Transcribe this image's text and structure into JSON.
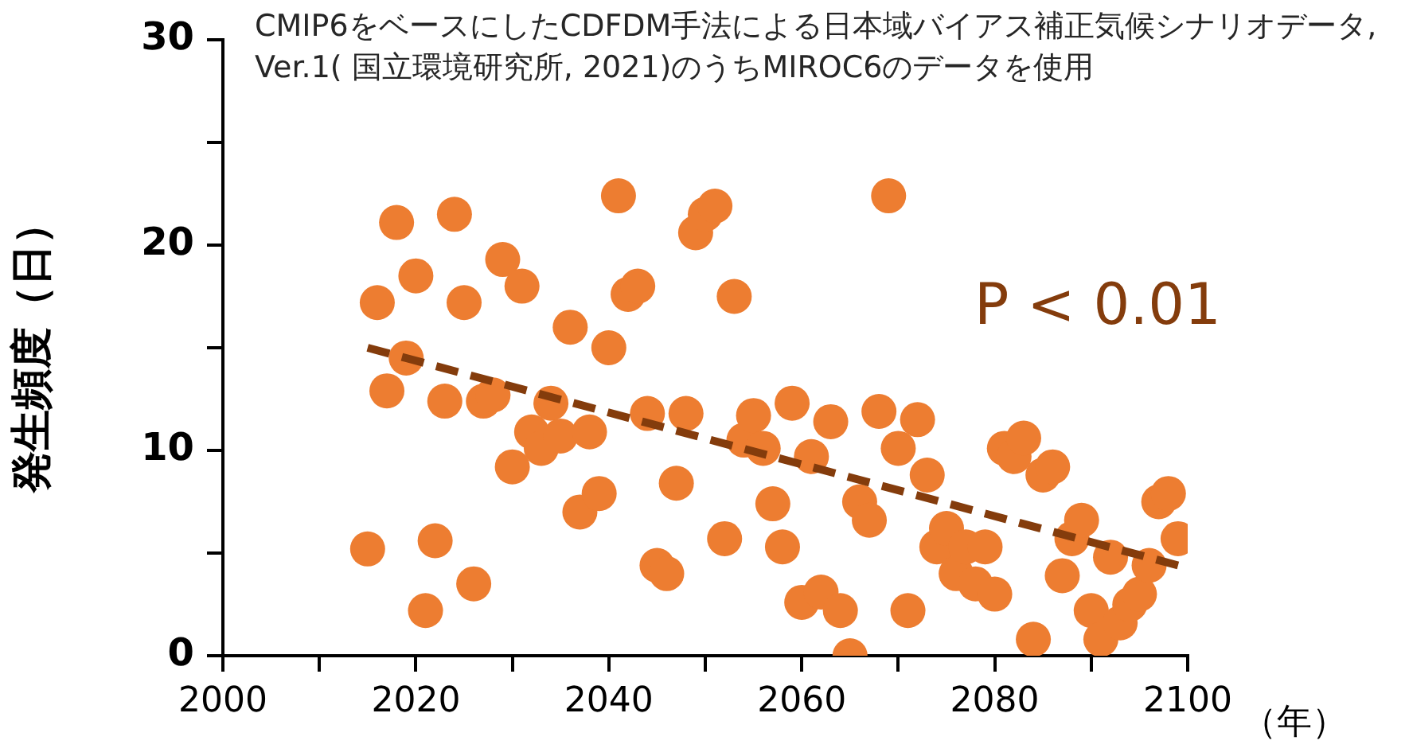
{
  "chart_data": {
    "type": "scatter",
    "xlabel": "（年）",
    "ylabel": "発生頻度（日）",
    "annotations": [
      "CMIP6をベースにしたCDFDM手法による日本域バイアス補正気候シナリオデータ, Ver.1( 国立環境研究所, 2021)のうちMIROC6のデータを使用",
      "P < 0.01"
    ],
    "xlim": [
      2000,
      2100
    ],
    "xticks": [
      2000,
      {
        "value": 2010,
        "label": null
      },
      2020,
      {
        "value": 2030,
        "label": null
      },
      2040,
      {
        "value": 2050,
        "label": null
      },
      2060,
      {
        "value": 2070,
        "label": null
      },
      2080,
      {
        "value": 2090,
        "label": null
      },
      2100
    ],
    "ylim": [
      0,
      30
    ],
    "yticks": [
      0,
      {
        "value": 5,
        "label": null
      },
      10,
      {
        "value": 15,
        "label": null
      },
      20,
      {
        "value": 25,
        "label": null
      },
      30
    ],
    "series": [
      {
        "color": "#ed7d31",
        "marker": "circle",
        "x": [
          2015,
          2016,
          2017,
          2018,
          2019,
          2020,
          2021,
          2022,
          2023,
          2024,
          2025,
          2026,
          2027,
          2028,
          2029,
          2030,
          2031,
          2032,
          2033,
          2034,
          2035,
          2036,
          2037,
          2038,
          2039,
          2040,
          2041,
          2042,
          2043,
          2044,
          2045,
          2046,
          2047,
          2048,
          2049,
          2050,
          2051,
          2052,
          2053,
          2054,
          2055,
          2056,
          2057,
          2058,
          2059,
          2060,
          2061,
          2062,
          2063,
          2064,
          2065,
          2066,
          2067,
          2068,
          2069,
          2070,
          2071,
          2072,
          2073,
          2074,
          2075,
          2076,
          2077,
          2078,
          2079,
          2080,
          2081,
          2082,
          2083,
          2084,
          2085,
          2086,
          2087,
          2088,
          2089,
          2090,
          2091,
          2092,
          2093,
          2094,
          2095,
          2096,
          2097,
          2098,
          2099
        ],
        "values": [
          5.2,
          17.2,
          12.9,
          21.1,
          14.5,
          18.5,
          2.2,
          5.6,
          12.4,
          21.5,
          17.2,
          3.5,
          12.4,
          12.7,
          19.3,
          9.2,
          18.0,
          10.9,
          10.1,
          12.3,
          10.7,
          16.0,
          7.0,
          10.9,
          7.9,
          15.0,
          22.4,
          17.6,
          18.0,
          11.8,
          4.4,
          4.0,
          8.4,
          11.8,
          20.6,
          21.5,
          21.9,
          5.7,
          17.5,
          10.5,
          11.7,
          10.1,
          7.4,
          5.3,
          12.3,
          2.6,
          9.7,
          3.1,
          11.4,
          2.2,
          0,
          7.5,
          6.6,
          11.9,
          22.4,
          10.1,
          2.2,
          11.5,
          8.8,
          5.3,
          6.2,
          4.0,
          5.3,
          3.5,
          5.3,
          3.0,
          10.1,
          9.7,
          10.6,
          0.8,
          8.8,
          9.2,
          3.9,
          5.7,
          6.6,
          2.2,
          0.8,
          4.8,
          1.6,
          2.5,
          3.0,
          4.4,
          7.5,
          7.9,
          5.7
        ]
      },
      {
        "type": "line",
        "color": "#843c0c",
        "marker": "none",
        "line_style": "dashed",
        "x": [
          2015,
          2099
        ],
        "values": [
          15.0,
          4.4
        ]
      }
    ]
  }
}
